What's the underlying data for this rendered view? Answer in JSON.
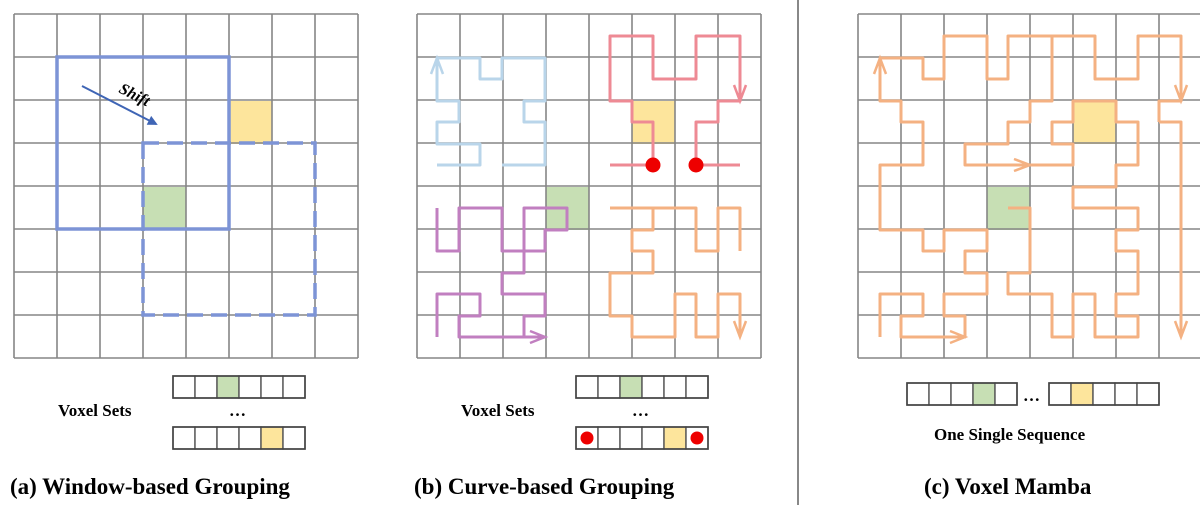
{
  "panels": [
    {
      "caption": "(a) Window-based Grouping",
      "arrow_label": "Shift",
      "sets_label": "Voxel Sets",
      "ellipsis": "…",
      "set_rows": [
        [
          "empty",
          "empty",
          "green",
          "empty",
          "empty",
          "empty"
        ],
        [
          "empty",
          "empty",
          "empty",
          "empty",
          "yellow",
          "empty"
        ]
      ]
    },
    {
      "caption": "(b) Curve-based Grouping",
      "sets_label": "Voxel Sets",
      "ellipsis": "…",
      "set_rows": [
        [
          "empty",
          "empty",
          "green",
          "empty",
          "empty",
          "empty"
        ],
        [
          "dot",
          "empty",
          "empty",
          "empty",
          "yellow",
          "dot"
        ]
      ]
    },
    {
      "caption": "(c) Voxel Mamba",
      "sequence_label": "One Single Sequence",
      "ellipsis": "…",
      "sequence_left": [
        "empty",
        "empty",
        "empty",
        "green",
        "empty"
      ],
      "sequence_right": [
        "empty",
        "yellow",
        "empty",
        "empty",
        "empty"
      ]
    }
  ],
  "colors": {
    "grid": "#858585",
    "green_cell": "#c7dfb4",
    "yellow_cell": "#fde59c",
    "window": "#7d94d6",
    "shift_arrow": "#3f65b5",
    "curve_blue": "#b9d5ea",
    "curve_red": "#ee8a94",
    "curve_purple": "#c17fc0",
    "curve_orange": "#f4b182",
    "red_dot": "#ee0000",
    "divider": "#888888"
  }
}
